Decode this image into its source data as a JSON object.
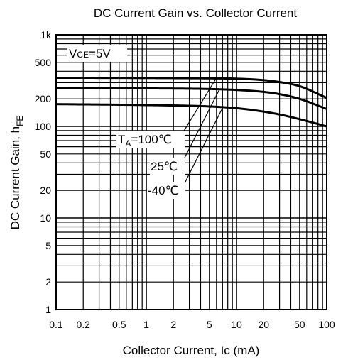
{
  "chart_data": {
    "type": "line",
    "title": "DC Current Gain vs. Collector Current",
    "xlabel": "Collector Current, Ic (mA)",
    "ylabel": {
      "main": "DC Current Gain, h",
      "sub": "FE"
    },
    "x_scale": "log",
    "y_scale": "log",
    "xlim": [
      0.1,
      100
    ],
    "ylim": [
      1,
      1000
    ],
    "grid": true,
    "x_ticks": [
      {
        "v": 0.1,
        "label": "0.1"
      },
      {
        "v": 0.2,
        "label": "0.2"
      },
      {
        "v": 0.5,
        "label": "0.5"
      },
      {
        "v": 1,
        "label": "1"
      },
      {
        "v": 2,
        "label": "2"
      },
      {
        "v": 5,
        "label": "5"
      },
      {
        "v": 10,
        "label": "10"
      },
      {
        "v": 20,
        "label": "20"
      },
      {
        "v": 50,
        "label": "50"
      },
      {
        "v": 100,
        "label": "100"
      }
    ],
    "y_ticks": [
      {
        "v": 1,
        "label": "1"
      },
      {
        "v": 2,
        "label": "2"
      },
      {
        "v": 5,
        "label": "5"
      },
      {
        "v": 10,
        "label": "10"
      },
      {
        "v": 20,
        "label": "20"
      },
      {
        "v": 50,
        "label": "50"
      },
      {
        "v": 100,
        "label": "100"
      },
      {
        "v": 200,
        "label": "200"
      },
      {
        "v": 500,
        "label": "500"
      },
      {
        "v": 1000,
        "label": "1k"
      }
    ],
    "condition": {
      "prefix": "V",
      "sub": "CE",
      "suffix": "=5V"
    },
    "series": [
      {
        "name": "T_A=100°C",
        "x": [
          0.1,
          1,
          5,
          10,
          20,
          30,
          50,
          100
        ],
        "y": [
          340,
          338,
          335,
          332,
          320,
          305,
          275,
          205
        ]
      },
      {
        "name": "25°C",
        "x": [
          0.1,
          1,
          5,
          10,
          20,
          30,
          50,
          100
        ],
        "y": [
          262,
          260,
          256,
          250,
          238,
          225,
          200,
          155
        ]
      },
      {
        "name": "-40°C",
        "x": [
          0.1,
          1,
          5,
          10,
          20,
          30,
          50,
          100
        ],
        "y": [
          175,
          171,
          165,
          158,
          145,
          135,
          120,
          100
        ]
      }
    ],
    "annotations": {
      "t100": {
        "prefix": "T",
        "sub": "A",
        "suffix": "=100℃"
      },
      "t25": "25℃",
      "tm40": "-40℃"
    }
  }
}
